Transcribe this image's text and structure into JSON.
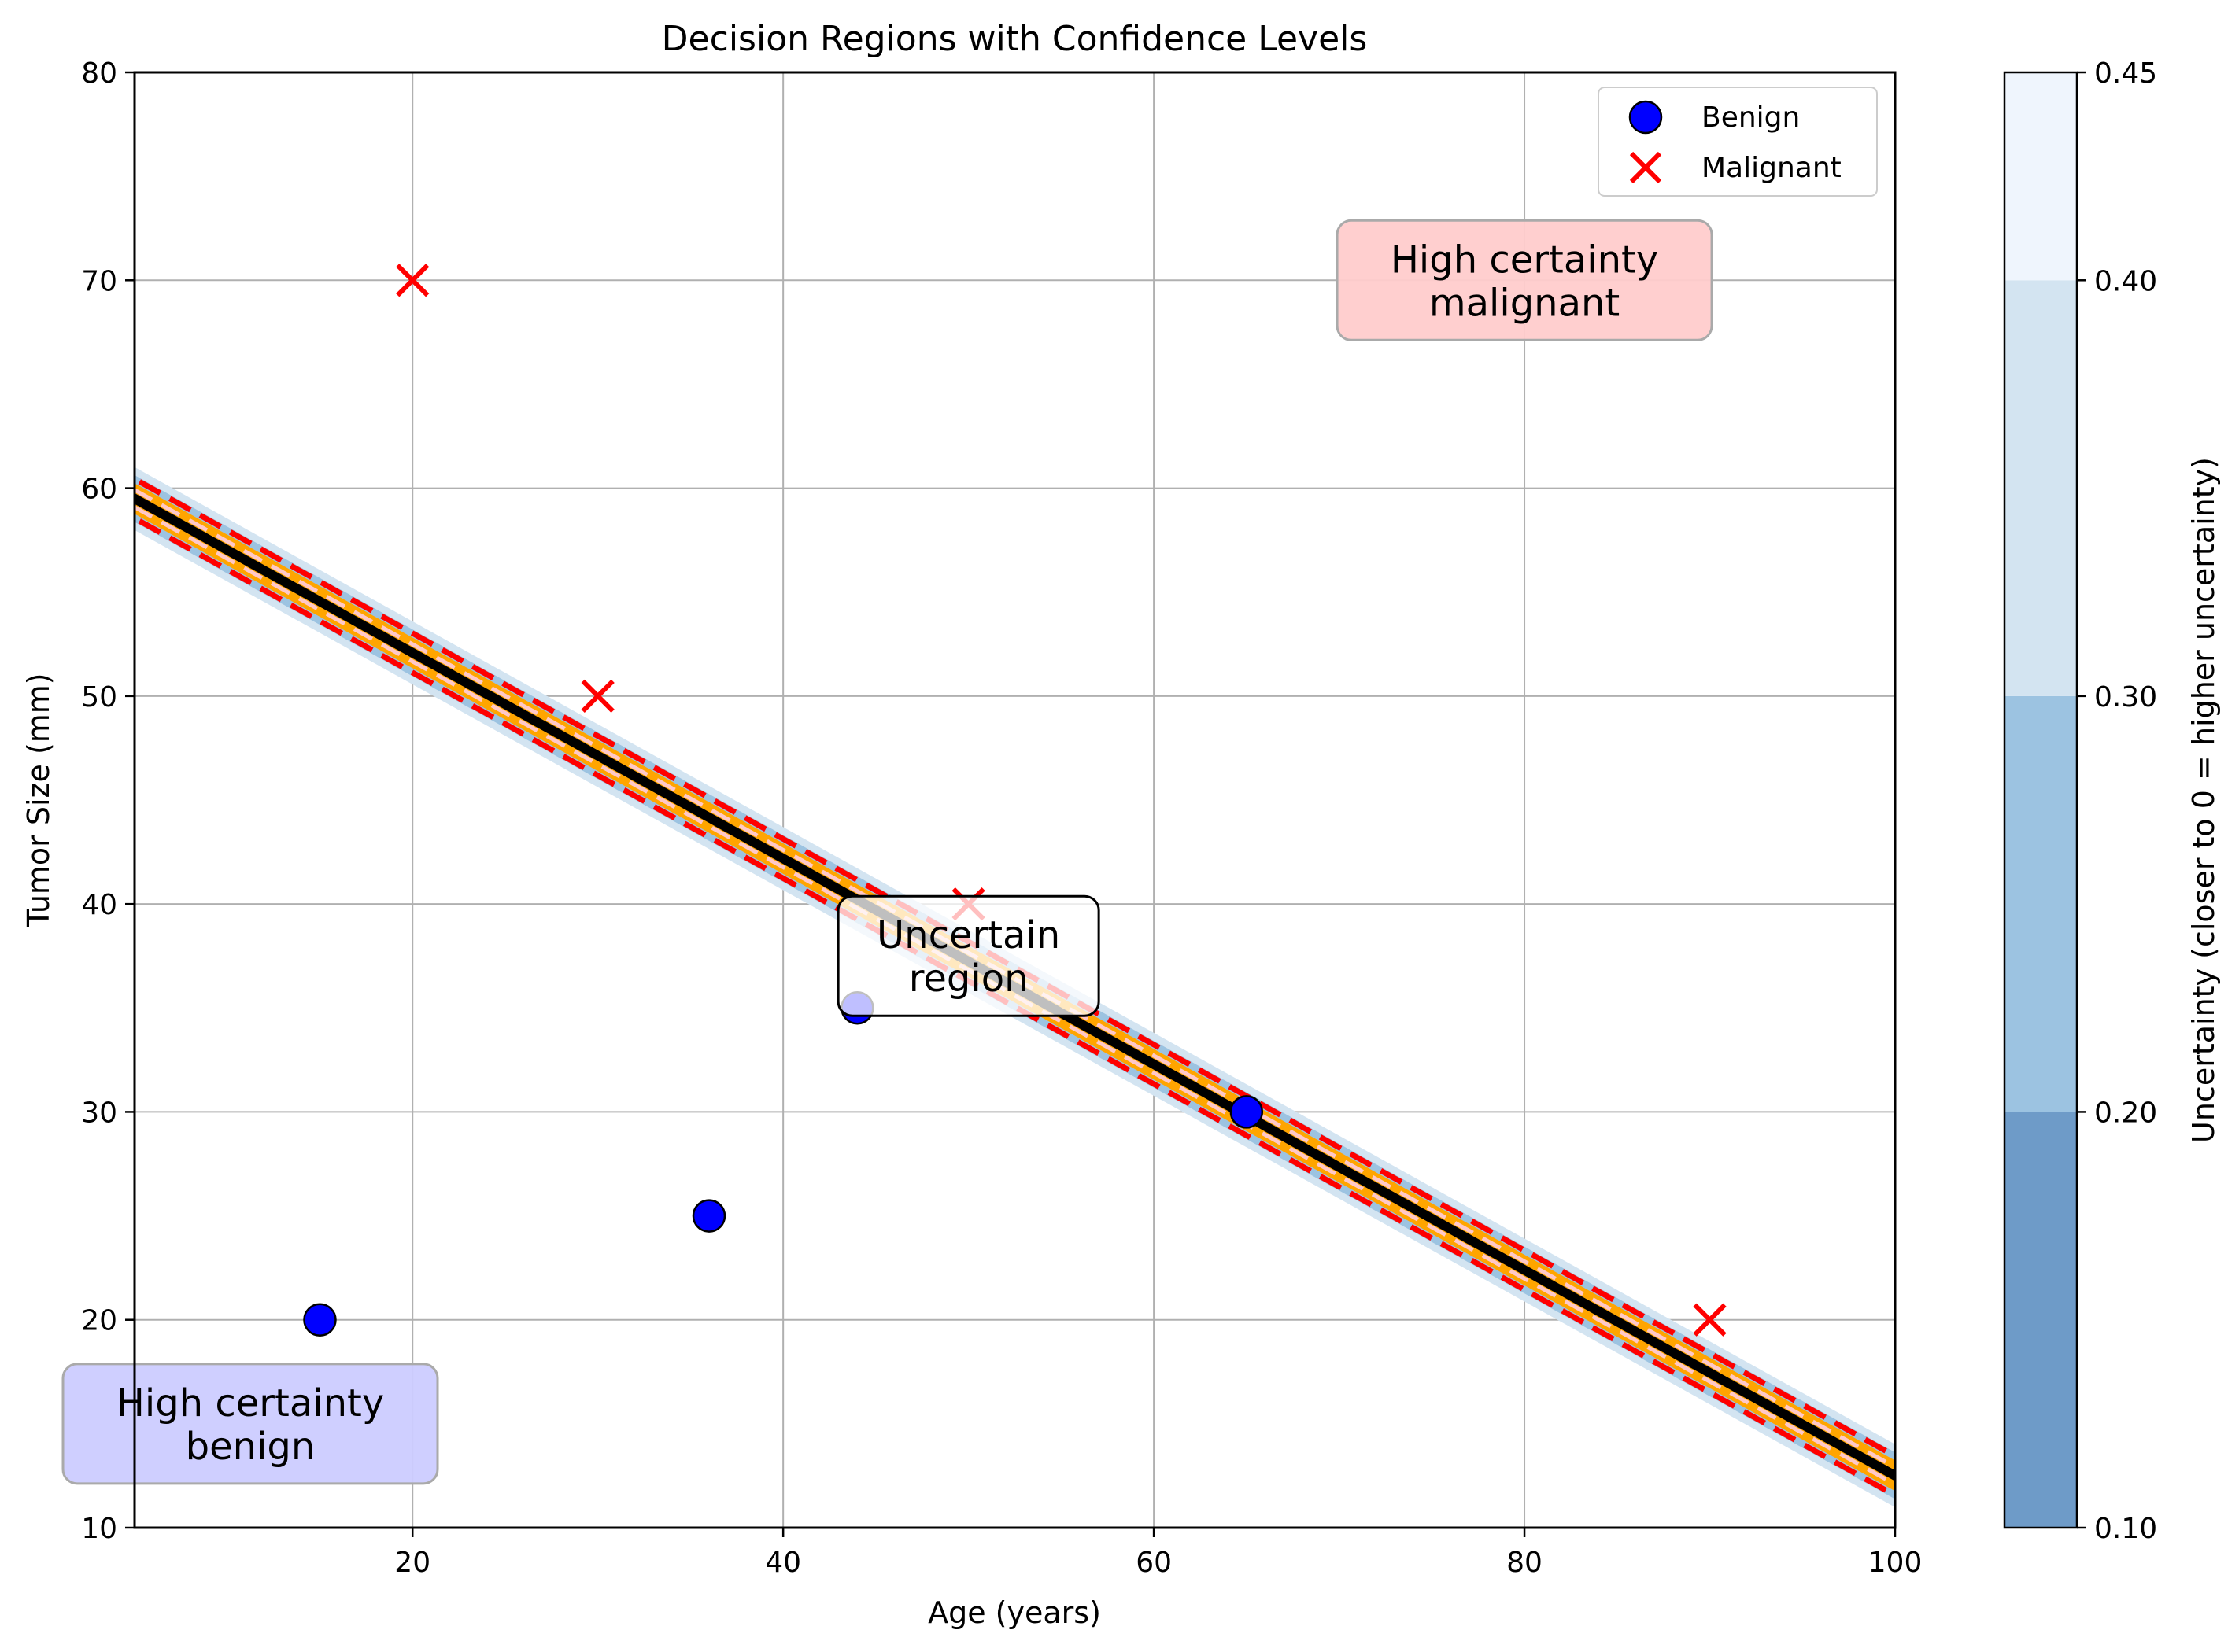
{
  "chart_data": {
    "type": "scatter",
    "title": "Decision Regions with Confidence Levels",
    "xlabel": "Age (years)",
    "ylabel": "Tumor Size (mm)",
    "xlim": [
      5,
      100
    ],
    "ylim": [
      10,
      80
    ],
    "xticks": [
      20,
      40,
      60,
      80,
      100
    ],
    "yticks": [
      10,
      20,
      30,
      40,
      50,
      60,
      70,
      80
    ],
    "grid": true,
    "legend_position": "top-right",
    "series": [
      {
        "name": "Benign",
        "marker": "circle",
        "color": "#0000ff",
        "points": [
          [
            15,
            20
          ],
          [
            36,
            25
          ],
          [
            44,
            35
          ],
          [
            65,
            30
          ]
        ]
      },
      {
        "name": "Malignant",
        "marker": "x",
        "color": "#ff0000",
        "points": [
          [
            20,
            70
          ],
          [
            30,
            50
          ],
          [
            50,
            40
          ],
          [
            90,
            20
          ]
        ]
      }
    ],
    "decision_boundary": {
      "type": "line",
      "color": "#000000",
      "points": [
        [
          5,
          59.5
        ],
        [
          100,
          12.5
        ]
      ],
      "confidence_band_color": "#ffa500",
      "confidence_lines_color": "#ff0000",
      "confidence_lines_style": "dashed"
    },
    "annotations": [
      {
        "text": [
          "High certainty",
          "malignant"
        ],
        "x": 80,
        "y": 70,
        "box_color": "#ffcccc"
      },
      {
        "text": [
          "Uncertain",
          "region"
        ],
        "x": 50,
        "y": 37.5,
        "box_color": "#ffffff"
      },
      {
        "text": [
          "High certainty",
          "benign"
        ],
        "x": 10,
        "y": 15,
        "box_color": "#ccccff"
      }
    ],
    "colorbar": {
      "label": "Uncertainty (closer to 0 = higher uncertainty)",
      "range": [
        0.1,
        0.45
      ],
      "ticks": [
        "0.10",
        "0.20",
        "0.30",
        "0.40",
        "0.45"
      ],
      "levels": [
        {
          "from": 0.1,
          "to": 0.2,
          "color": "#6e9bc8"
        },
        {
          "from": 0.2,
          "to": 0.3,
          "color": "#9cc3e1"
        },
        {
          "from": 0.3,
          "to": 0.4,
          "color": "#d3e4f1"
        },
        {
          "from": 0.4,
          "to": 0.45,
          "color": "#eff5fd"
        }
      ]
    }
  }
}
